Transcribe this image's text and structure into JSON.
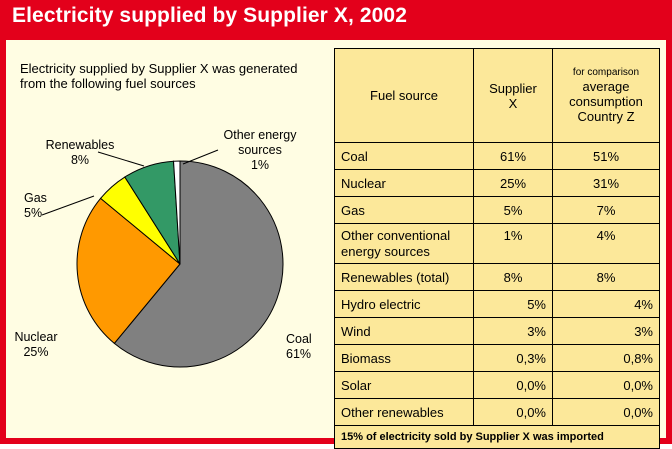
{
  "title": "Electricity supplied by Supplier X, 2002",
  "intro": "Electricity supplied by Supplier X was generated from the following fuel sources",
  "chart_data": {
    "type": "pie",
    "title": "",
    "slices": [
      {
        "name": "Coal",
        "value": 61,
        "label": "61%",
        "color": "#808080"
      },
      {
        "name": "Nuclear",
        "value": 25,
        "label": "25%",
        "color": "#ff9900"
      },
      {
        "name": "Gas",
        "value": 5,
        "label": "5%",
        "color": "#ffff00"
      },
      {
        "name": "Renewables",
        "value": 8,
        "label": "8%",
        "color": "#339966"
      },
      {
        "name": "Other energy sources",
        "value": 1,
        "label": "1%",
        "color": "#ffffff"
      }
    ],
    "start": "top, clockwise"
  },
  "table": {
    "header": {
      "fuel_source": "Fuel source",
      "supplier_x_line1": "Supplier",
      "supplier_x_line2": "X",
      "comparison_note": "for comparison",
      "comparison_line1": "average",
      "comparison_line2": "consumption",
      "comparison_line3": "Country Z"
    },
    "rows": [
      {
        "source": "Coal",
        "supplier": "61%",
        "country": "51%"
      },
      {
        "source": "Nuclear",
        "supplier": "25%",
        "country": "31%"
      },
      {
        "source": "Gas",
        "supplier": "5%",
        "country": "7%"
      },
      {
        "source": "Other conventional energy sources",
        "supplier": "1%",
        "country": "4%"
      },
      {
        "source": "Renewables (total)",
        "supplier": "8%",
        "country": "8%"
      }
    ],
    "sub_rows": [
      {
        "source": "Hydro electric",
        "supplier": "5%",
        "country": "4%"
      },
      {
        "source": "Wind",
        "supplier": "3%",
        "country": "3%"
      },
      {
        "source": "Biomass",
        "supplier": "0,3%",
        "country": "0,8%"
      },
      {
        "source": "Solar",
        "supplier": "0,0%",
        "country": "0,0%"
      },
      {
        "source": "Other renewables",
        "supplier": "0,0%",
        "country": "0,0%"
      }
    ],
    "footnote": "15% of electricity sold by Supplier X was imported"
  }
}
